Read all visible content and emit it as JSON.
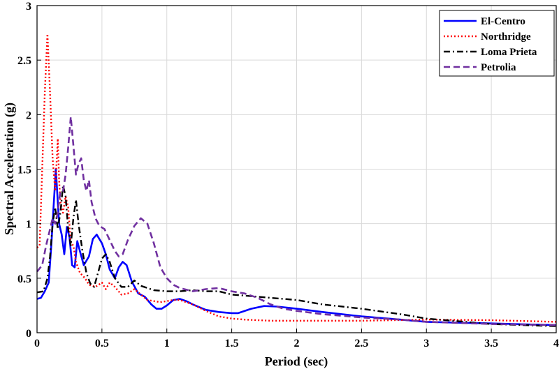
{
  "chart_data": {
    "type": "line",
    "title": "",
    "xlabel": "Period (sec)",
    "ylabel": "Spectral Acceleration (g)",
    "xlim": [
      0,
      4
    ],
    "ylim": [
      0,
      3
    ],
    "xticks": [
      0,
      0.5,
      1,
      1.5,
      2,
      2.5,
      3,
      3.5,
      4
    ],
    "xtick_labels": [
      "0",
      "0.5",
      "1",
      "1.5",
      "2",
      "2.5",
      "3",
      "3.5",
      "4"
    ],
    "yticks": [
      0,
      0.5,
      1,
      1.5,
      2,
      2.5,
      3
    ],
    "ytick_labels": [
      "0",
      "0.5",
      "1",
      "1.5",
      "2",
      "2.5",
      "3"
    ],
    "grid": true,
    "legend_position": "top-right",
    "series": [
      {
        "name": "El-Centro",
        "color": "#0000ff",
        "style": "solid",
        "points": [
          [
            0,
            0.31
          ],
          [
            0.03,
            0.32
          ],
          [
            0.06,
            0.38
          ],
          [
            0.09,
            0.46
          ],
          [
            0.11,
            0.8
          ],
          [
            0.13,
            1.2
          ],
          [
            0.145,
            1.5
          ],
          [
            0.16,
            1.2
          ],
          [
            0.17,
            1.0
          ],
          [
            0.19,
            0.9
          ],
          [
            0.21,
            0.72
          ],
          [
            0.23,
            0.97
          ],
          [
            0.25,
            0.88
          ],
          [
            0.27,
            0.62
          ],
          [
            0.29,
            0.6
          ],
          [
            0.31,
            0.84
          ],
          [
            0.33,
            0.75
          ],
          [
            0.36,
            0.62
          ],
          [
            0.4,
            0.7
          ],
          [
            0.43,
            0.86
          ],
          [
            0.46,
            0.9
          ],
          [
            0.5,
            0.82
          ],
          [
            0.53,
            0.72
          ],
          [
            0.56,
            0.58
          ],
          [
            0.6,
            0.5
          ],
          [
            0.63,
            0.6
          ],
          [
            0.66,
            0.65
          ],
          [
            0.69,
            0.62
          ],
          [
            0.73,
            0.47
          ],
          [
            0.78,
            0.36
          ],
          [
            0.83,
            0.33
          ],
          [
            0.88,
            0.26
          ],
          [
            0.92,
            0.22
          ],
          [
            0.96,
            0.22
          ],
          [
            1.0,
            0.25
          ],
          [
            1.05,
            0.3
          ],
          [
            1.1,
            0.31
          ],
          [
            1.15,
            0.29
          ],
          [
            1.2,
            0.26
          ],
          [
            1.3,
            0.21
          ],
          [
            1.4,
            0.19
          ],
          [
            1.5,
            0.18
          ],
          [
            1.55,
            0.18
          ],
          [
            1.65,
            0.22
          ],
          [
            1.75,
            0.245
          ],
          [
            1.85,
            0.24
          ],
          [
            2.0,
            0.22
          ],
          [
            2.2,
            0.19
          ],
          [
            2.5,
            0.15
          ],
          [
            2.8,
            0.12
          ],
          [
            3.0,
            0.1
          ],
          [
            3.5,
            0.085
          ],
          [
            4.0,
            0.07
          ]
        ]
      },
      {
        "name": "Northridge",
        "color": "#ff0000",
        "style": "dotted",
        "points": [
          [
            0,
            0.78
          ],
          [
            0.02,
            0.8
          ],
          [
            0.04,
            1.5
          ],
          [
            0.06,
            2.2
          ],
          [
            0.08,
            2.74
          ],
          [
            0.1,
            2.2
          ],
          [
            0.12,
            1.6
          ],
          [
            0.14,
            1.3
          ],
          [
            0.15,
            1.55
          ],
          [
            0.16,
            1.78
          ],
          [
            0.17,
            1.4
          ],
          [
            0.18,
            1.2
          ],
          [
            0.2,
            1.1
          ],
          [
            0.22,
            1.25
          ],
          [
            0.24,
            1.15
          ],
          [
            0.26,
            0.82
          ],
          [
            0.28,
            0.8
          ],
          [
            0.3,
            0.65
          ],
          [
            0.33,
            0.55
          ],
          [
            0.37,
            0.5
          ],
          [
            0.4,
            0.44
          ],
          [
            0.45,
            0.42
          ],
          [
            0.5,
            0.46
          ],
          [
            0.53,
            0.4
          ],
          [
            0.56,
            0.46
          ],
          [
            0.6,
            0.42
          ],
          [
            0.65,
            0.35
          ],
          [
            0.7,
            0.36
          ],
          [
            0.75,
            0.4
          ],
          [
            0.8,
            0.35
          ],
          [
            0.85,
            0.3
          ],
          [
            0.95,
            0.28
          ],
          [
            1.05,
            0.3
          ],
          [
            1.1,
            0.3
          ],
          [
            1.2,
            0.26
          ],
          [
            1.3,
            0.2
          ],
          [
            1.4,
            0.15
          ],
          [
            1.5,
            0.13
          ],
          [
            1.6,
            0.12
          ],
          [
            1.8,
            0.11
          ],
          [
            2.0,
            0.11
          ],
          [
            2.5,
            0.11
          ],
          [
            3.0,
            0.12
          ],
          [
            3.5,
            0.115
          ],
          [
            4.0,
            0.1
          ]
        ]
      },
      {
        "name": "Loma Prieta",
        "color": "#000000",
        "style": "dashdot",
        "points": [
          [
            0,
            0.37
          ],
          [
            0.05,
            0.38
          ],
          [
            0.08,
            0.5
          ],
          [
            0.1,
            0.7
          ],
          [
            0.12,
            1.0
          ],
          [
            0.14,
            1.15
          ],
          [
            0.16,
            0.95
          ],
          [
            0.18,
            1.1
          ],
          [
            0.2,
            1.35
          ],
          [
            0.22,
            1.25
          ],
          [
            0.24,
            0.95
          ],
          [
            0.26,
            0.8
          ],
          [
            0.28,
            1.05
          ],
          [
            0.3,
            1.22
          ],
          [
            0.32,
            1.0
          ],
          [
            0.35,
            0.75
          ],
          [
            0.38,
            0.55
          ],
          [
            0.41,
            0.45
          ],
          [
            0.44,
            0.42
          ],
          [
            0.47,
            0.55
          ],
          [
            0.5,
            0.68
          ],
          [
            0.53,
            0.72
          ],
          [
            0.56,
            0.65
          ],
          [
            0.6,
            0.5
          ],
          [
            0.65,
            0.42
          ],
          [
            0.7,
            0.42
          ],
          [
            0.75,
            0.48
          ],
          [
            0.8,
            0.43
          ],
          [
            0.9,
            0.39
          ],
          [
            1.0,
            0.38
          ],
          [
            1.1,
            0.38
          ],
          [
            1.2,
            0.39
          ],
          [
            1.3,
            0.38
          ],
          [
            1.4,
            0.38
          ],
          [
            1.5,
            0.35
          ],
          [
            1.6,
            0.34
          ],
          [
            1.7,
            0.33
          ],
          [
            1.8,
            0.32
          ],
          [
            1.9,
            0.31
          ],
          [
            2.0,
            0.3
          ],
          [
            2.2,
            0.26
          ],
          [
            2.5,
            0.22
          ],
          [
            2.8,
            0.17
          ],
          [
            3.0,
            0.13
          ],
          [
            3.5,
            0.08
          ],
          [
            4.0,
            0.06
          ]
        ]
      },
      {
        "name": "Petrolia",
        "color": "#7030a0",
        "style": "dashed",
        "points": [
          [
            0,
            0.56
          ],
          [
            0.04,
            0.62
          ],
          [
            0.07,
            0.8
          ],
          [
            0.1,
            0.95
          ],
          [
            0.12,
            1.05
          ],
          [
            0.14,
            1.0
          ],
          [
            0.16,
            1.1
          ],
          [
            0.18,
            1.3
          ],
          [
            0.2,
            1.3
          ],
          [
            0.22,
            1.45
          ],
          [
            0.24,
            1.7
          ],
          [
            0.26,
            1.98
          ],
          [
            0.28,
            1.72
          ],
          [
            0.3,
            1.45
          ],
          [
            0.32,
            1.55
          ],
          [
            0.34,
            1.6
          ],
          [
            0.36,
            1.4
          ],
          [
            0.38,
            1.3
          ],
          [
            0.4,
            1.4
          ],
          [
            0.42,
            1.2
          ],
          [
            0.45,
            1.05
          ],
          [
            0.48,
            0.98
          ],
          [
            0.52,
            0.95
          ],
          [
            0.56,
            0.85
          ],
          [
            0.6,
            0.75
          ],
          [
            0.63,
            0.7
          ],
          [
            0.66,
            0.72
          ],
          [
            0.7,
            0.85
          ],
          [
            0.75,
            0.98
          ],
          [
            0.8,
            1.05
          ],
          [
            0.85,
            1.0
          ],
          [
            0.9,
            0.82
          ],
          [
            0.95,
            0.6
          ],
          [
            1.0,
            0.5
          ],
          [
            1.05,
            0.44
          ],
          [
            1.1,
            0.41
          ],
          [
            1.2,
            0.38
          ],
          [
            1.3,
            0.4
          ],
          [
            1.4,
            0.41
          ],
          [
            1.5,
            0.38
          ],
          [
            1.6,
            0.36
          ],
          [
            1.7,
            0.32
          ],
          [
            1.8,
            0.26
          ],
          [
            1.9,
            0.22
          ],
          [
            2.0,
            0.2
          ],
          [
            2.2,
            0.17
          ],
          [
            2.5,
            0.14
          ],
          [
            2.8,
            0.12
          ],
          [
            3.0,
            0.1
          ],
          [
            3.5,
            0.08
          ],
          [
            4.0,
            0.07
          ]
        ]
      }
    ]
  }
}
